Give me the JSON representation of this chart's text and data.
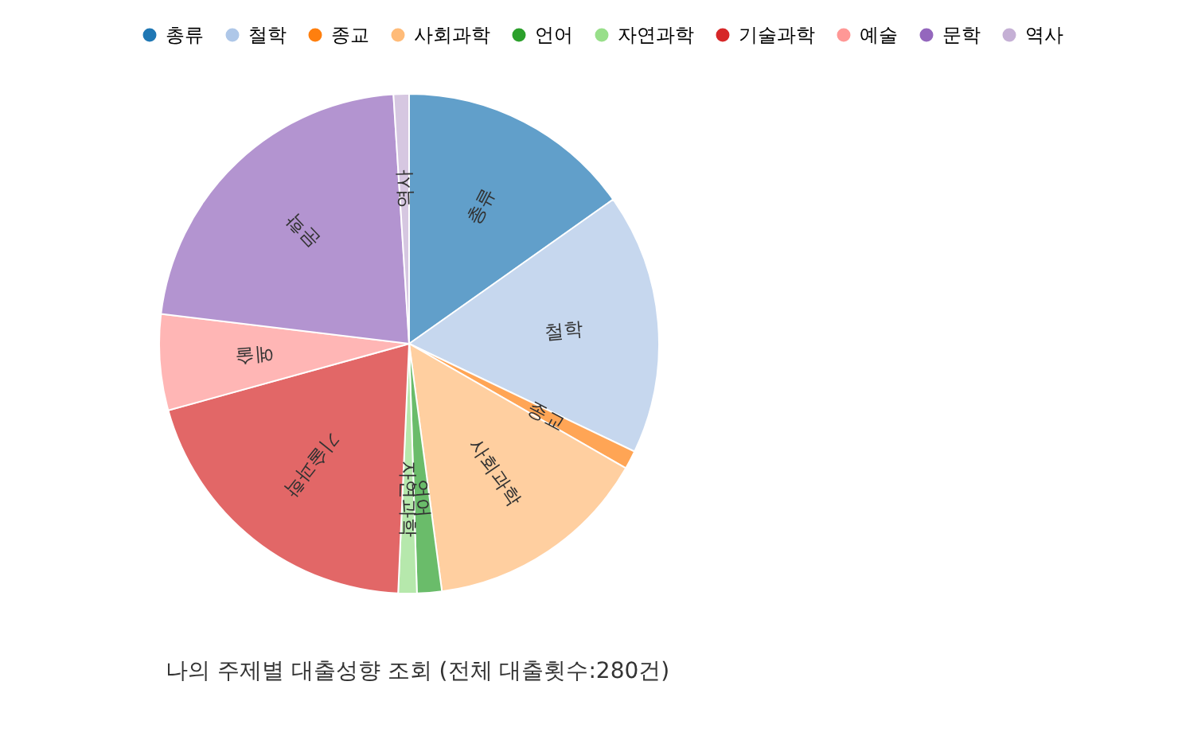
{
  "chart_data": {
    "type": "pie",
    "title": "나의 주제별 대출성향 조회 (전체 대출횟수:280건)",
    "categories": [
      "총류",
      "철학",
      "종교",
      "사회과학",
      "언어",
      "자연과학",
      "기술과학",
      "예술",
      "문학",
      "역사"
    ],
    "values": [
      15.2,
      16.9,
      1.2,
      14.6,
      1.6,
      1.2,
      20.0,
      6.2,
      22.1,
      1.0
    ],
    "colors": [
      "#1f77b4",
      "#aec7e8",
      "#ff7f0e",
      "#ffbb78",
      "#2ca02c",
      "#98df8a",
      "#d62728",
      "#ff9896",
      "#9467bd",
      "#c5b0d5"
    ],
    "legend": "top"
  }
}
